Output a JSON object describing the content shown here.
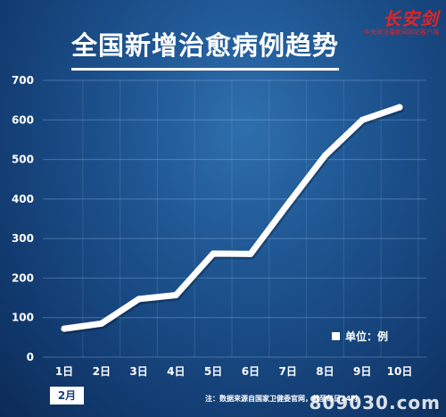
{
  "title": "全国新增治愈病例趋势",
  "logo": {
    "main": "长安剑",
    "sub": "中央政法委新闻网站客户端"
  },
  "legend_label": "单位：例",
  "month_tag": "2月",
  "note": "注：数据来源自国家卫健委官网，截至每日24时",
  "watermark": "809030.com",
  "colors": {
    "background": "#1e5591",
    "line": "#ffffff",
    "logo": "#e52323"
  },
  "chart_data": {
    "type": "line",
    "categories": [
      "1日",
      "2日",
      "3日",
      "4日",
      "5日",
      "6日",
      "7日",
      "8日",
      "9日",
      "10日"
    ],
    "series": [
      {
        "values": [
          72,
          85,
          147,
          157,
          262,
          261,
          387,
          510,
          600,
          632
        ]
      }
    ],
    "yticks": [
      0,
      100,
      200,
      300,
      400,
      500,
      600,
      700
    ],
    "ylim": [
      0,
      700
    ],
    "grid": true,
    "legend": "bottom-right"
  }
}
